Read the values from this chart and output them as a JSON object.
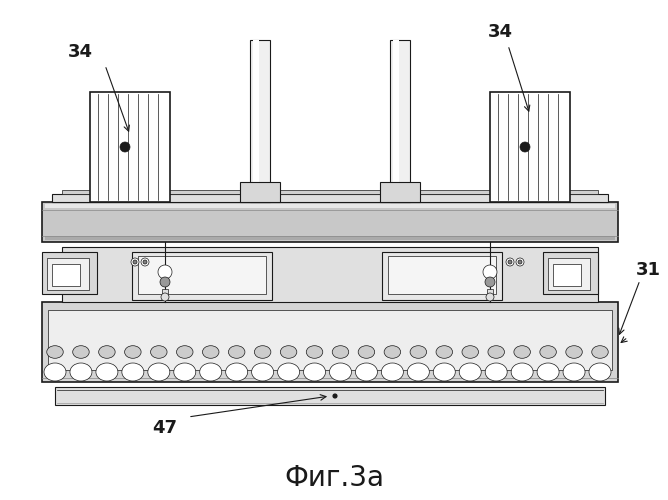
{
  "title": "Фиг.3а",
  "labels": {
    "34_left": "34",
    "34_right": "34",
    "31": "31",
    "47": "47"
  },
  "background_color": "#ffffff",
  "line_color": "#1a1a1a",
  "title_fontsize": 20,
  "label_fontsize": 13,
  "gray_light": "#e8e8e8",
  "gray_med": "#c8c8c8",
  "gray_dark": "#a0a0a0",
  "white": "#ffffff"
}
